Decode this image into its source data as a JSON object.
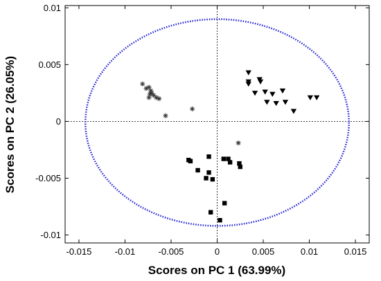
{
  "chart_data": {
    "type": "scatter",
    "xlabel": "Scores on PC 1 (63.99%)",
    "ylabel": "Scores on PC 2 (26.05%)",
    "xlim": [
      -0.0165,
      0.0165
    ],
    "ylim": [
      -0.0107,
      0.0102
    ],
    "xticks": [
      -0.015,
      -0.01,
      -0.005,
      0,
      0.005,
      0.01,
      0.015
    ],
    "xtick_labels": [
      "-0.015",
      "-0.01",
      "-0.005",
      "0",
      "0.005",
      "0.01",
      "0.015"
    ],
    "yticks": [
      -0.01,
      -0.005,
      0,
      0.005,
      0.01
    ],
    "ytick_labels": [
      "-0.01",
      "-0.005",
      "0",
      "0.005",
      "0.01"
    ],
    "grid": false,
    "zero_lines": true,
    "confidence_ellipse": {
      "cx": 0.0,
      "cy": -0.0001,
      "rx": 0.0143,
      "ry": 0.0091,
      "color": "#1f1fd0"
    },
    "series": [
      {
        "marker": "star",
        "color": "#333333",
        "points": [
          [
            -0.0081,
            0.0033
          ],
          [
            -0.0077,
            0.0029
          ],
          [
            -0.0074,
            0.003
          ],
          [
            -0.0072,
            0.0027
          ],
          [
            -0.0071,
            0.0025
          ],
          [
            -0.0073,
            0.0024
          ],
          [
            -0.0069,
            0.0023
          ],
          [
            -0.0074,
            0.0021
          ],
          [
            -0.0066,
            0.0021
          ],
          [
            -0.0063,
            0.002
          ],
          [
            -0.0056,
            0.0005
          ],
          [
            -0.0027,
            0.0011
          ],
          [
            0.0023,
            -0.0019
          ]
        ]
      },
      {
        "marker": "triangle-down",
        "color": "#000000",
        "points": [
          [
            0.0034,
            0.0043
          ],
          [
            0.0034,
            0.0035
          ],
          [
            0.0034,
            0.0033
          ],
          [
            0.0046,
            0.0037
          ],
          [
            0.0047,
            0.0035
          ],
          [
            0.0041,
            0.0025
          ],
          [
            0.0052,
            0.0026
          ],
          [
            0.006,
            0.0024
          ],
          [
            0.0064,
            0.0016
          ],
          [
            0.0054,
            0.0017
          ],
          [
            0.0074,
            0.0017
          ],
          [
            0.0083,
            0.0009
          ],
          [
            0.0071,
            0.0027
          ],
          [
            0.0101,
            0.0021
          ],
          [
            0.0108,
            0.0021
          ]
        ]
      },
      {
        "marker": "square",
        "color": "#000000",
        "points": [
          [
            -0.0031,
            -0.0034
          ],
          [
            -0.0029,
            -0.0035
          ],
          [
            -0.0009,
            -0.0031
          ],
          [
            -0.0009,
            -0.0045
          ],
          [
            -0.0012,
            -0.005
          ],
          [
            -0.0005,
            -0.0051
          ],
          [
            -0.0021,
            -0.0043
          ],
          [
            -0.0007,
            -0.008
          ],
          [
            0.0007,
            -0.0033
          ],
          [
            0.0012,
            -0.0033
          ],
          [
            0.0014,
            -0.0036
          ],
          [
            0.0024,
            -0.0037
          ],
          [
            0.0025,
            -0.004
          ],
          [
            0.0008,
            -0.0072
          ],
          [
            0.0003,
            -0.0087
          ]
        ]
      }
    ]
  }
}
